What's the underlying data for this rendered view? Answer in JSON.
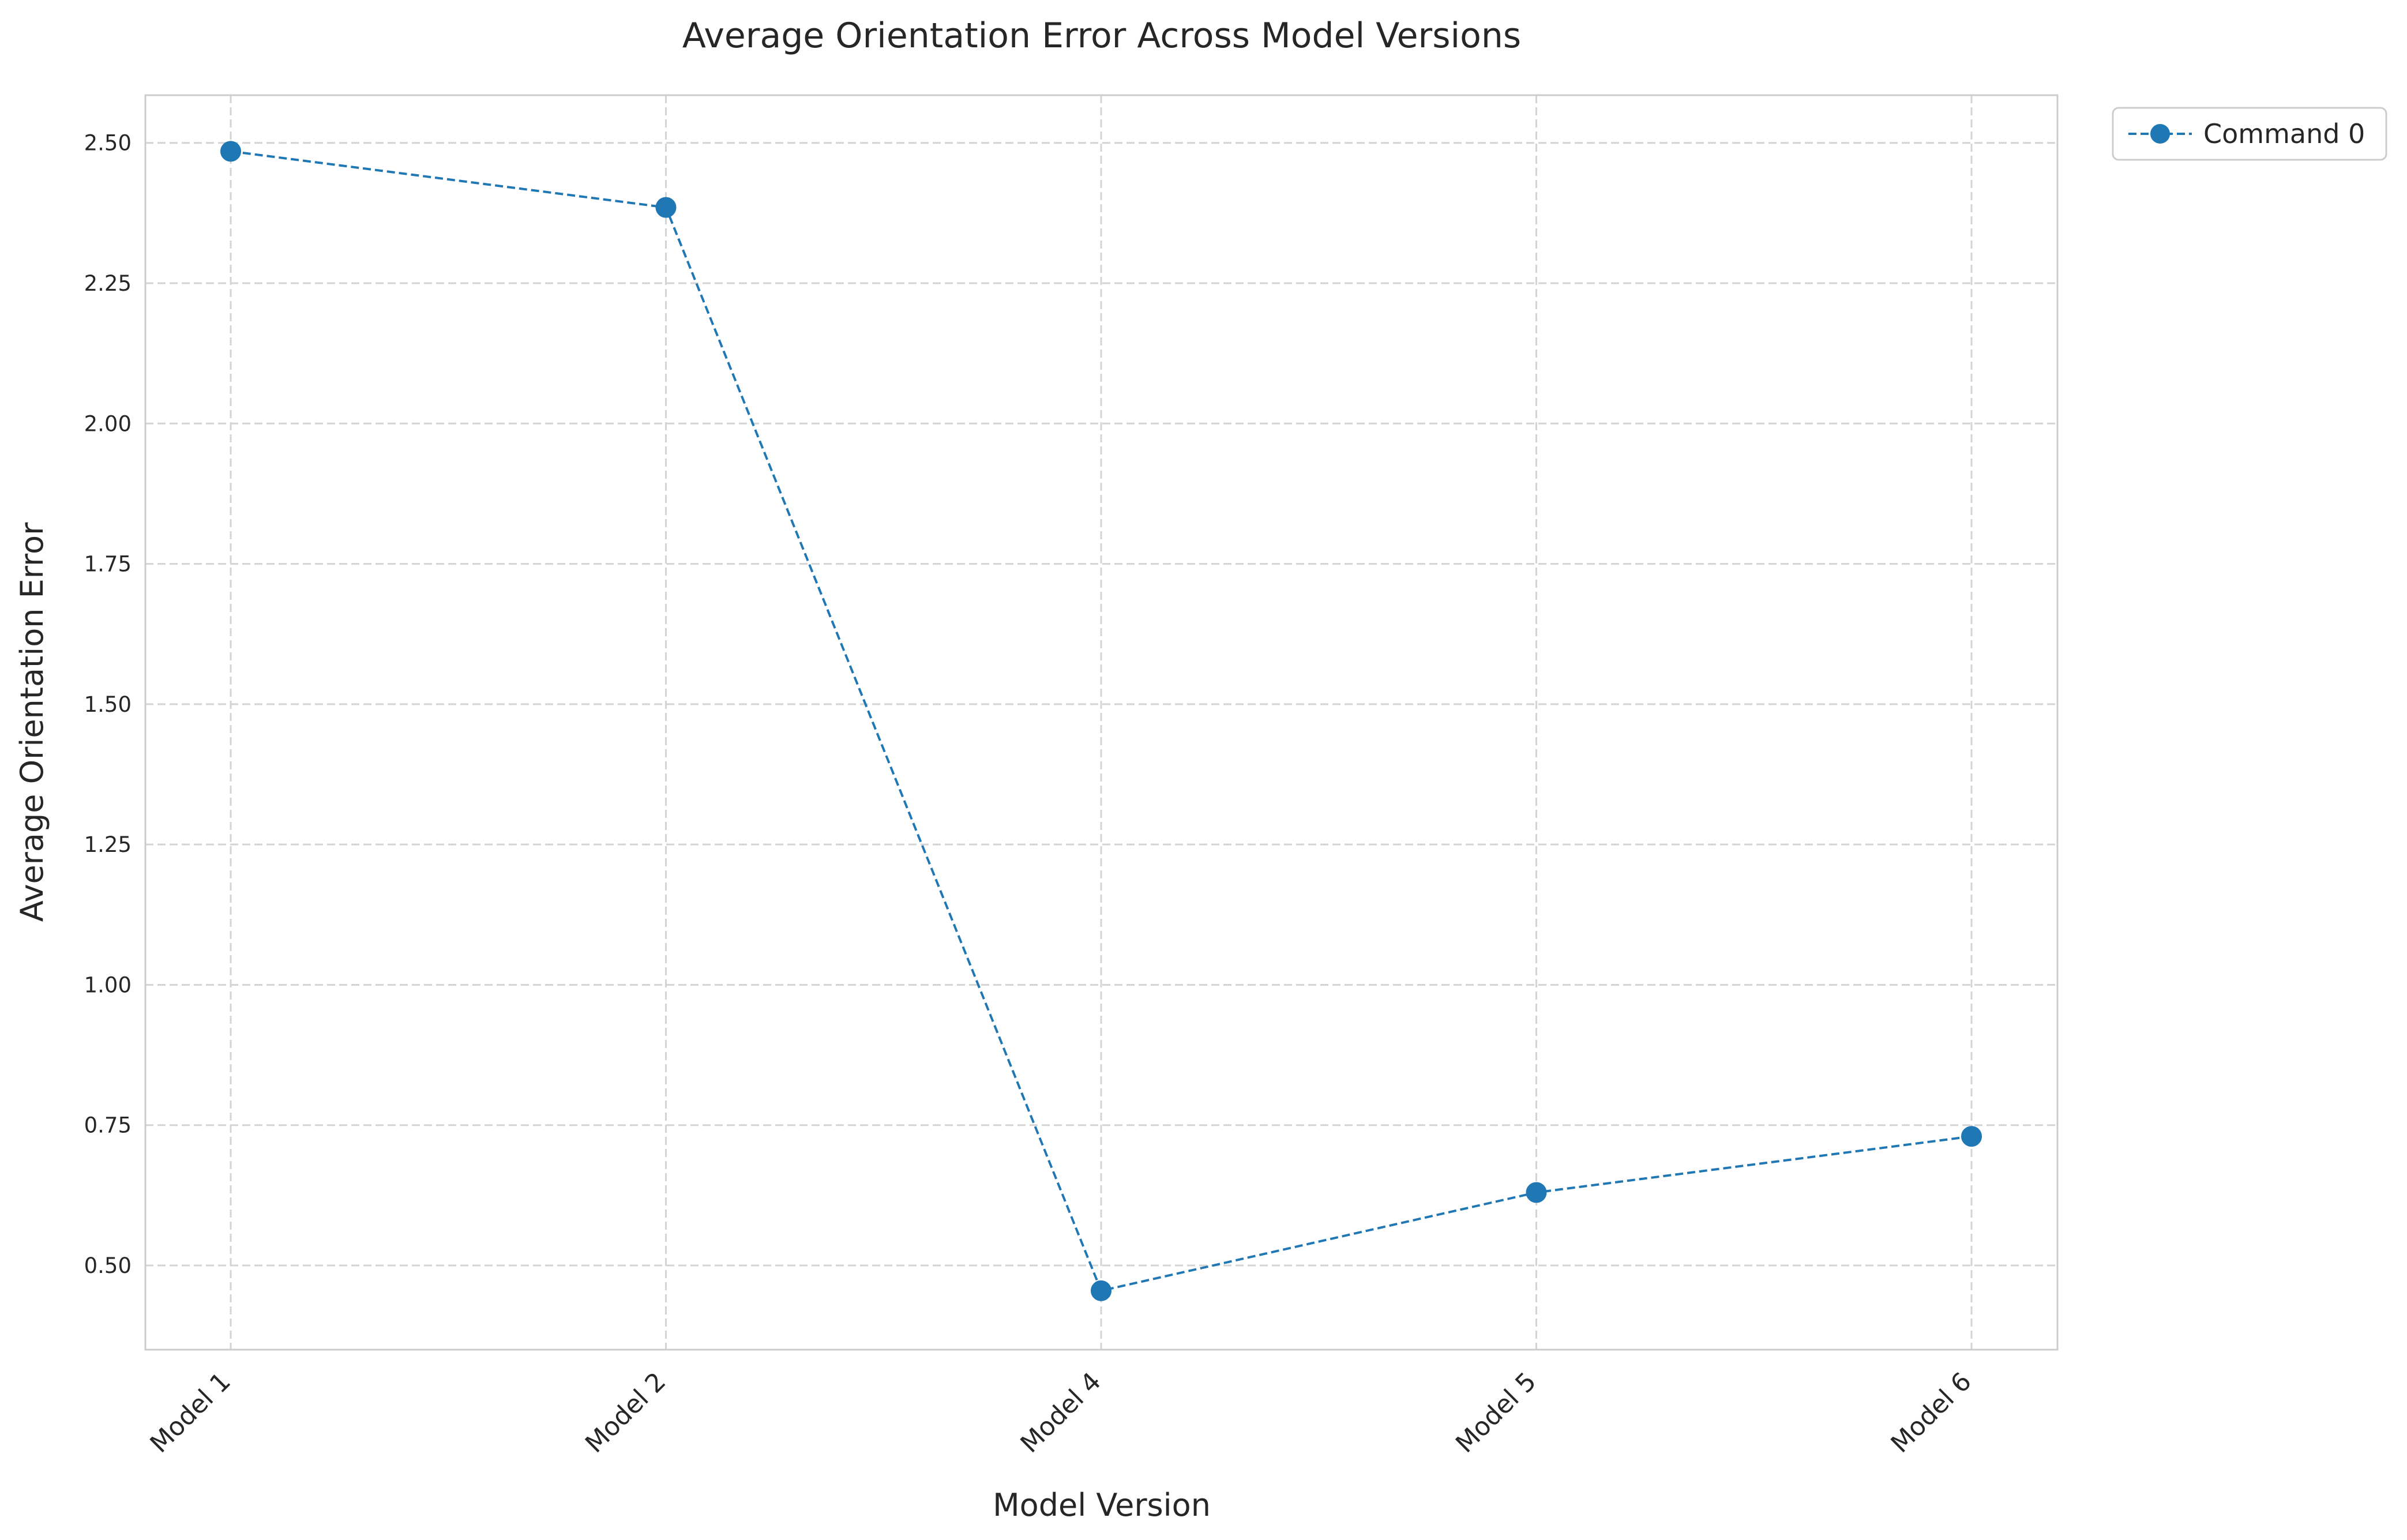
{
  "chart_data": {
    "type": "line",
    "title": "Average Orientation Error Across Model Versions",
    "xlabel": "Model Version",
    "ylabel": "Average Orientation Error",
    "categories": [
      "Model 1",
      "Model 2",
      "Model 4",
      "Model 5",
      "Model 6"
    ],
    "series": [
      {
        "name": "Command 0",
        "values": [
          2.485,
          2.385,
          0.455,
          0.63,
          0.73
        ],
        "color": "#1f77b4",
        "line_style": "dashed",
        "marker": "circle"
      }
    ],
    "ylim": [
      0.35,
      2.585
    ],
    "yticks": [
      0.5,
      0.75,
      1.0,
      1.25,
      1.5,
      1.75,
      2.0,
      2.25,
      2.5
    ],
    "ytick_labels": [
      "0.50",
      "0.75",
      "1.00",
      "1.25",
      "1.50",
      "1.75",
      "2.00",
      "2.25",
      "2.50"
    ],
    "grid": true,
    "legend_position": "outside top-right"
  }
}
